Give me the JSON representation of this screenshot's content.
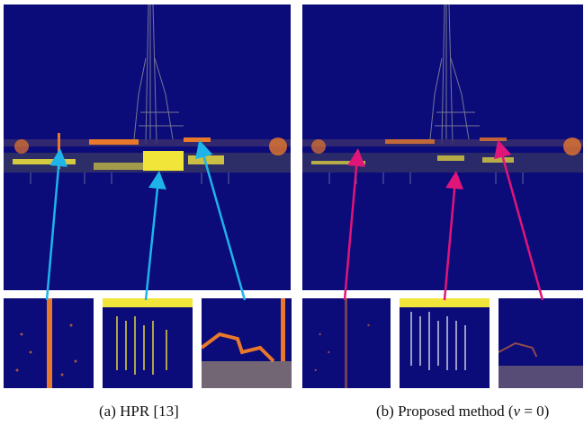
{
  "figure": {
    "panels": [
      {
        "id": "a",
        "caption": "(a) HPR [13]",
        "arrow_color": "#1eb4ea"
      },
      {
        "id": "b",
        "caption_prefix": "(b) Proposed method (",
        "caption_var": "v",
        "caption_suffix": " = 0)",
        "arrow_color": "#e0157a"
      }
    ],
    "colors": {
      "background": "#0b0b7a",
      "highlight_yellow": "#f2e53a",
      "highlight_orange": "#e8782a"
    }
  }
}
